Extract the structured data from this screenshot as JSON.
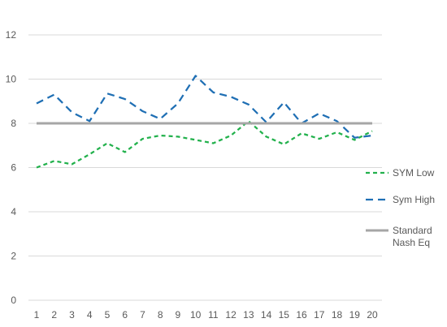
{
  "chart_data": {
    "type": "line",
    "x": [
      1,
      2,
      3,
      4,
      5,
      6,
      7,
      8,
      9,
      10,
      11,
      12,
      13,
      14,
      15,
      16,
      17,
      18,
      19,
      20
    ],
    "ylim": [
      0,
      12
    ],
    "yticks": [
      0,
      2,
      4,
      6,
      8,
      10,
      12
    ],
    "grid": true,
    "legend": "right",
    "series": [
      {
        "name": "SYM Low",
        "color": "#22b14c",
        "dash": "dashed",
        "values": [
          6.0,
          6.3,
          6.15,
          6.6,
          7.1,
          6.7,
          7.3,
          7.45,
          7.4,
          7.25,
          7.1,
          7.45,
          8.1,
          7.4,
          7.05,
          7.55,
          7.3,
          7.6,
          7.25,
          7.65
        ]
      },
      {
        "name": "Sym High",
        "color": "#1f6fb4",
        "dash": "longdash",
        "values": [
          8.9,
          9.3,
          8.5,
          8.1,
          9.35,
          9.1,
          8.55,
          8.2,
          8.9,
          10.15,
          9.4,
          9.2,
          8.85,
          8.05,
          8.95,
          8.0,
          8.45,
          8.1,
          7.35,
          7.45
        ]
      },
      {
        "name_lines": [
          "Standard",
          "Nash Eq"
        ],
        "color": "#a6a6a6",
        "dash": "solid",
        "values": [
          8,
          8,
          8,
          8,
          8,
          8,
          8,
          8,
          8,
          8,
          8,
          8,
          8,
          8,
          8,
          8,
          8,
          8,
          8,
          8
        ]
      }
    ]
  }
}
